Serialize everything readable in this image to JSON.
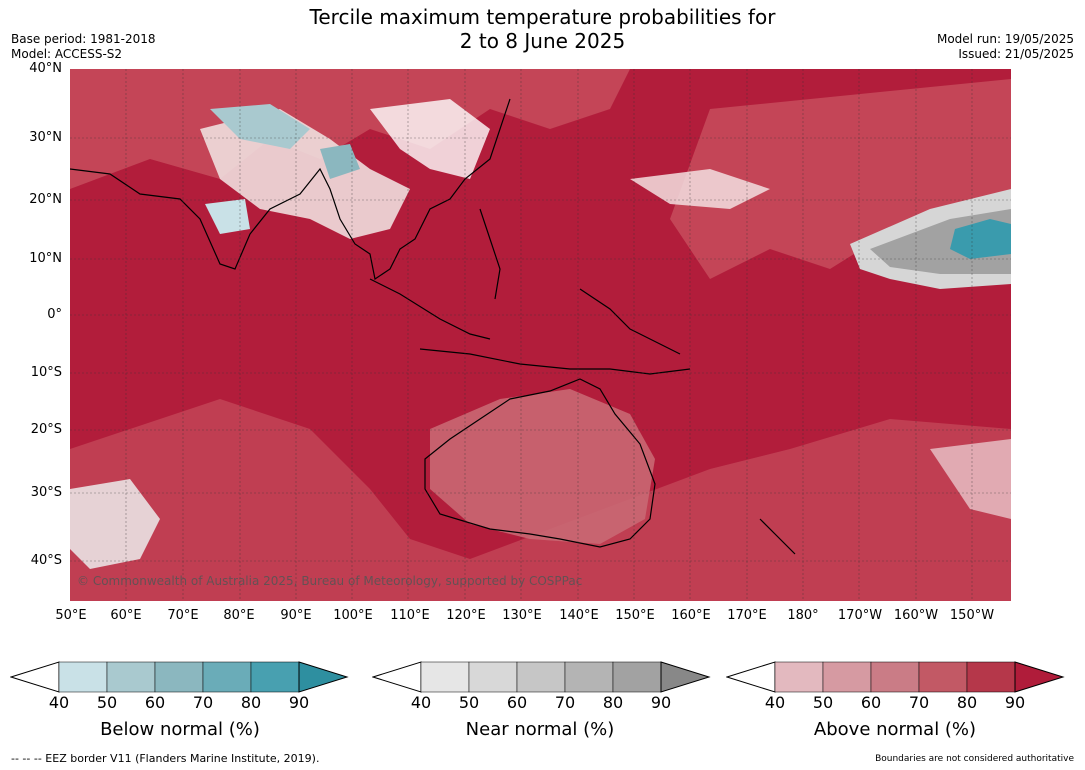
{
  "title_line1": "Tercile maximum temperature probabilities for",
  "title_line2": "2 to 8 June 2025",
  "meta_left": {
    "line1": "Base period: 1981-2018",
    "line2": "Model: ACCESS-S2"
  },
  "meta_right": {
    "line1": "Model run: 19/05/2025",
    "line2": "Issued: 21/05/2025"
  },
  "lat_labels": [
    "40°N",
    "30°N",
    "20°N",
    "10°N",
    "0°",
    "10°S",
    "20°S",
    "30°S",
    "40°S"
  ],
  "lon_labels": [
    "50°E",
    "60°E",
    "70°E",
    "80°E",
    "90°E",
    "100°E",
    "110°E",
    "120°E",
    "130°E",
    "140°E",
    "150°E",
    "160°E",
    "170°E",
    "180°",
    "170°W",
    "160°W",
    "150°W"
  ],
  "copyright": "© Commonwealth of Australia 2025, Bureau of Meteorology, supported by COSPPac",
  "colorbars": [
    {
      "title": "Below normal (%)",
      "ticks": [
        "40",
        "50",
        "60",
        "70",
        "80",
        "90"
      ],
      "colors": [
        "#c9e1e7",
        "#a9c9cf",
        "#8bb7bf",
        "#6aacb8",
        "#48a0b0",
        "#2e8fa0"
      ]
    },
    {
      "title": "Near normal (%)",
      "ticks": [
        "40",
        "50",
        "60",
        "70",
        "80",
        "90"
      ],
      "colors": [
        "#e6e6e6",
        "#d8d8d8",
        "#c6c6c6",
        "#b4b4b4",
        "#a2a2a2",
        "#888888"
      ]
    },
    {
      "title": "Above normal (%)",
      "ticks": [
        "40",
        "50",
        "60",
        "70",
        "80",
        "90"
      ],
      "colors": [
        "#e3b9bf",
        "#d69aa2",
        "#ca7c86",
        "#c25965",
        "#b5374a",
        "#b01c3a"
      ]
    }
  ],
  "footer_left": "--  --  -- EEZ border V11 (Flanders Marine Institute, 2019).",
  "footer_right": "Boundaries are not considered authoritative",
  "colors": {
    "dominant_above": "#b21d3b",
    "ocean_mid": "#c8505f",
    "near_normal": "#a2a2a2",
    "below_normal": "#3a9bad"
  }
}
